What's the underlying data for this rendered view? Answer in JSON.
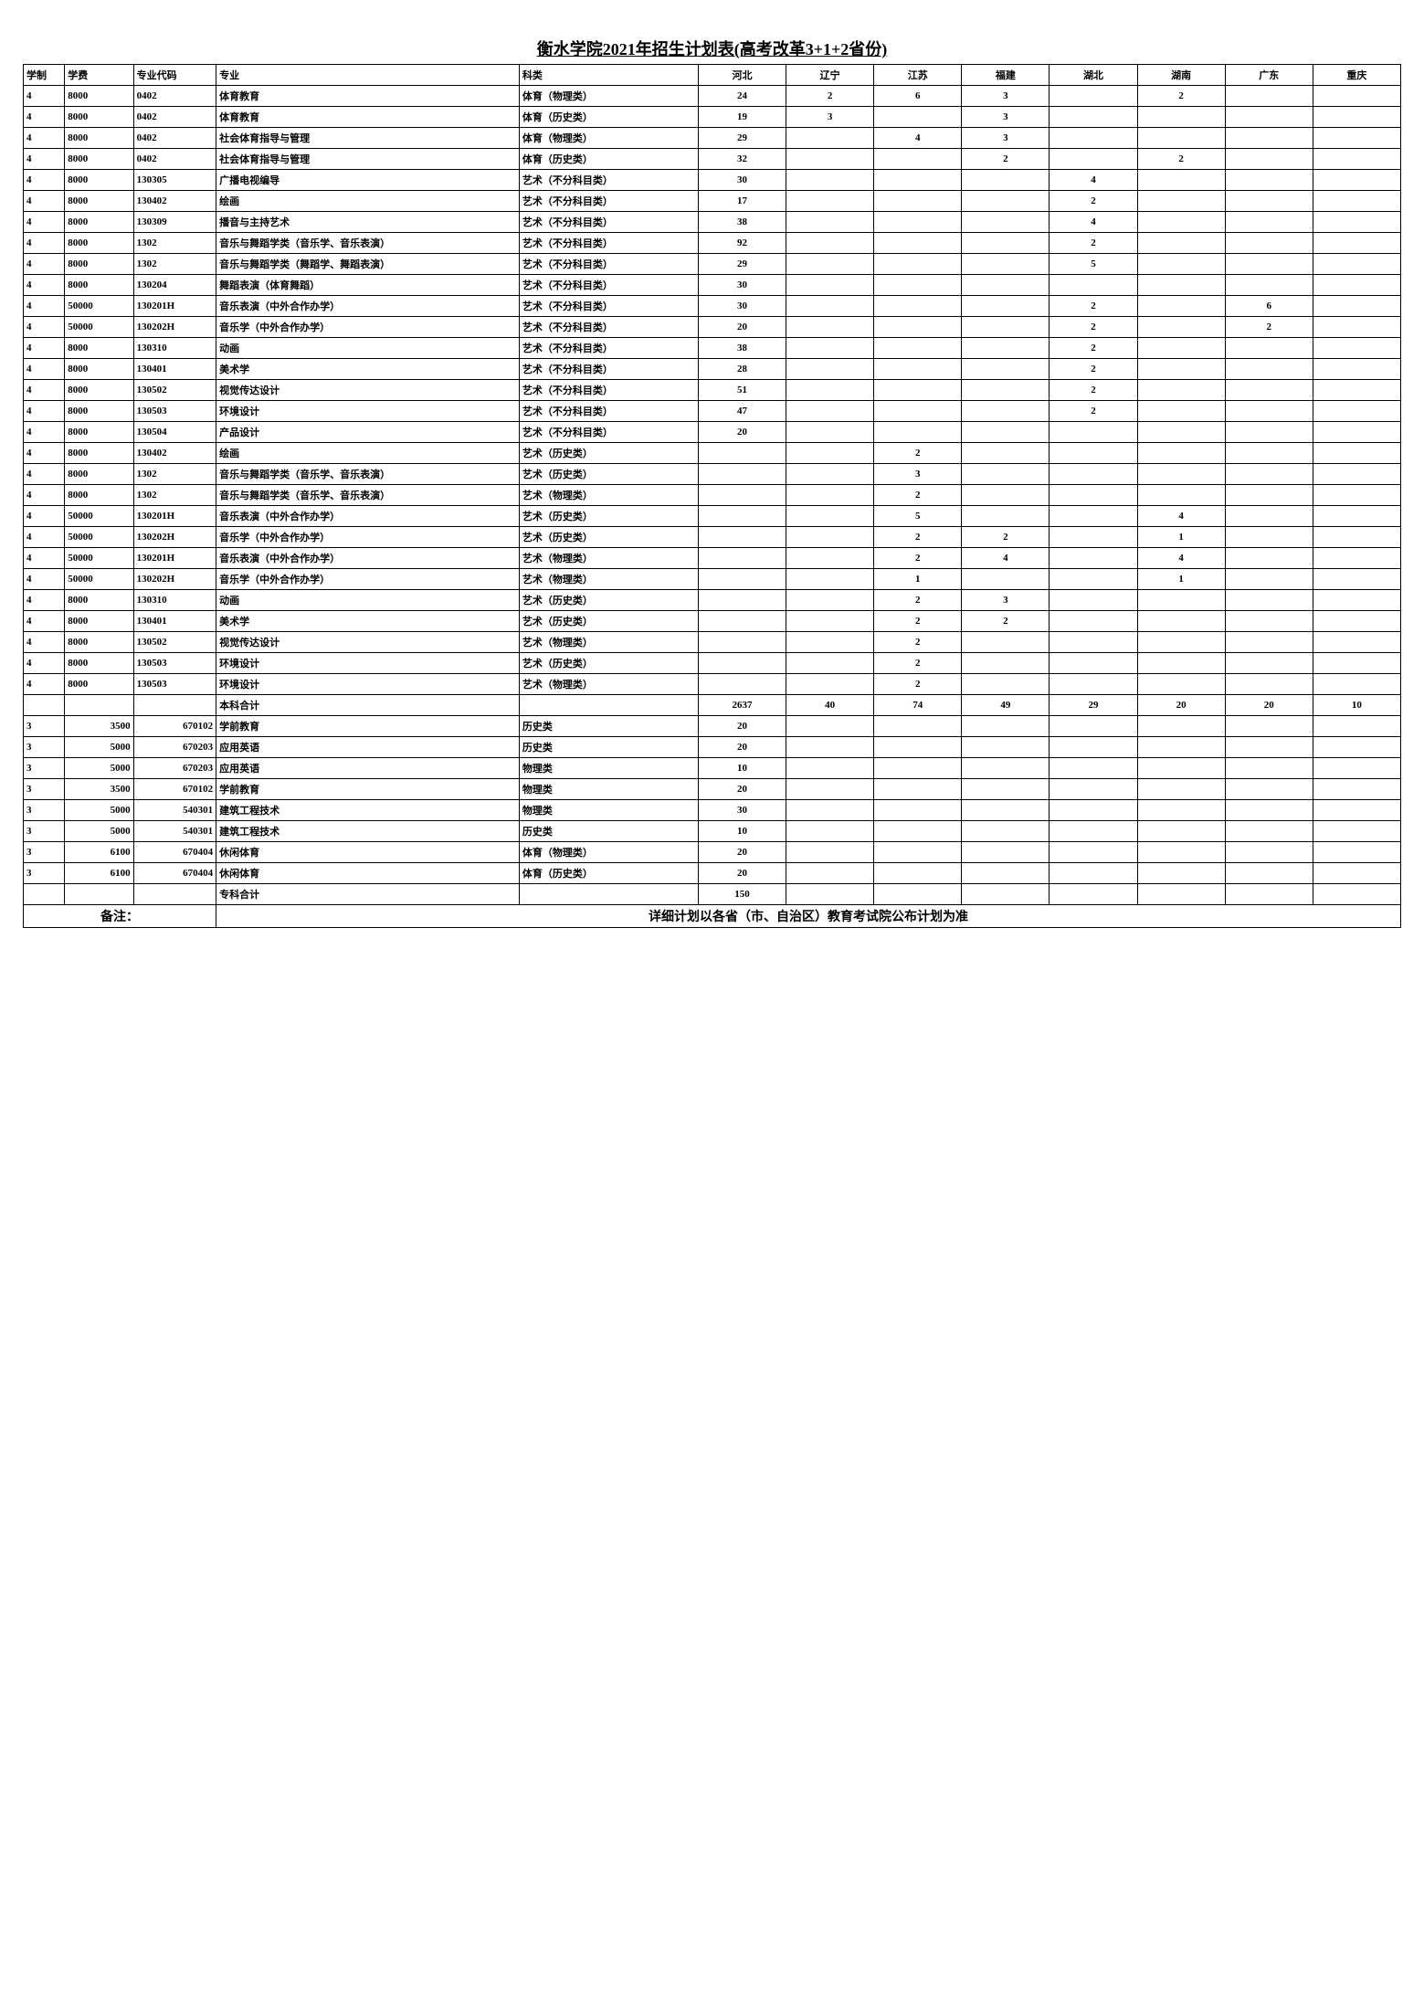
{
  "title": "衡水学院2021年招生计划表(高考改革3+1+2省份)",
  "columns": [
    "学制",
    "学费",
    "专业代码",
    "专业",
    "科类",
    "河北",
    "辽宁",
    "江苏",
    "福建",
    "湖北",
    "湖南",
    "广东",
    "重庆"
  ],
  "rows": [
    [
      "4",
      "8000",
      "0402",
      "体育教育",
      "体育（物理类）",
      "24",
      "2",
      "6",
      "3",
      "",
      "2",
      "",
      ""
    ],
    [
      "4",
      "8000",
      "0402",
      "体育教育",
      "体育（历史类）",
      "19",
      "3",
      "",
      "3",
      "",
      "",
      "",
      ""
    ],
    [
      "4",
      "8000",
      "0402",
      "社会体育指导与管理",
      "体育（物理类）",
      "29",
      "",
      "4",
      "3",
      "",
      "",
      "",
      ""
    ],
    [
      "4",
      "8000",
      "0402",
      "社会体育指导与管理",
      "体育（历史类）",
      "32",
      "",
      "",
      "2",
      "",
      "2",
      "",
      ""
    ],
    [
      "4",
      "8000",
      "130305",
      "广播电视编导",
      "艺术（不分科目类）",
      "30",
      "",
      "",
      "",
      "4",
      "",
      "",
      ""
    ],
    [
      "4",
      "8000",
      "130402",
      "绘画",
      "艺术（不分科目类）",
      "17",
      "",
      "",
      "",
      "2",
      "",
      "",
      ""
    ],
    [
      "4",
      "8000",
      "130309",
      "播音与主持艺术",
      "艺术（不分科目类）",
      "38",
      "",
      "",
      "",
      "4",
      "",
      "",
      ""
    ],
    [
      "4",
      "8000",
      "1302",
      "音乐与舞蹈学类（音乐学、音乐表演）",
      "艺术（不分科目类）",
      "92",
      "",
      "",
      "",
      "2",
      "",
      "",
      ""
    ],
    [
      "4",
      "8000",
      "1302",
      "音乐与舞蹈学类（舞蹈学、舞蹈表演）",
      "艺术（不分科目类）",
      "29",
      "",
      "",
      "",
      "5",
      "",
      "",
      ""
    ],
    [
      "4",
      "8000",
      "130204",
      "舞蹈表演（体育舞蹈）",
      "艺术（不分科目类）",
      "30",
      "",
      "",
      "",
      "",
      "",
      "",
      ""
    ],
    [
      "4",
      "50000",
      "130201H",
      "音乐表演（中外合作办学）",
      "艺术（不分科目类）",
      "30",
      "",
      "",
      "",
      "2",
      "",
      "6",
      ""
    ],
    [
      "4",
      "50000",
      "130202H",
      "音乐学（中外合作办学）",
      "艺术（不分科目类）",
      "20",
      "",
      "",
      "",
      "2",
      "",
      "2",
      ""
    ],
    [
      "4",
      "8000",
      "130310",
      "动画",
      "艺术（不分科目类）",
      "38",
      "",
      "",
      "",
      "2",
      "",
      "",
      ""
    ],
    [
      "4",
      "8000",
      "130401",
      "美术学",
      "艺术（不分科目类）",
      "28",
      "",
      "",
      "",
      "2",
      "",
      "",
      ""
    ],
    [
      "4",
      "8000",
      "130502",
      "视觉传达设计",
      "艺术（不分科目类）",
      "51",
      "",
      "",
      "",
      "2",
      "",
      "",
      ""
    ],
    [
      "4",
      "8000",
      "130503",
      "环境设计",
      "艺术（不分科目类）",
      "47",
      "",
      "",
      "",
      "2",
      "",
      "",
      ""
    ],
    [
      "4",
      "8000",
      "130504",
      "产品设计",
      "艺术（不分科目类）",
      "20",
      "",
      "",
      "",
      "",
      "",
      "",
      ""
    ],
    [
      "4",
      "8000",
      "130402",
      "绘画",
      "艺术（历史类）",
      "",
      "",
      "2",
      "",
      "",
      "",
      "",
      ""
    ],
    [
      "4",
      "8000",
      "1302",
      "音乐与舞蹈学类（音乐学、音乐表演）",
      "艺术（历史类）",
      "",
      "",
      "3",
      "",
      "",
      "",
      "",
      ""
    ],
    [
      "4",
      "8000",
      "1302",
      "音乐与舞蹈学类（音乐学、音乐表演）",
      "艺术（物理类）",
      "",
      "",
      "2",
      "",
      "",
      "",
      "",
      ""
    ],
    [
      "4",
      "50000",
      "130201H",
      "音乐表演（中外合作办学）",
      "艺术（历史类）",
      "",
      "",
      "5",
      "",
      "",
      "4",
      "",
      ""
    ],
    [
      "4",
      "50000",
      "130202H",
      "音乐学（中外合作办学）",
      "艺术（历史类）",
      "",
      "",
      "2",
      "2",
      "",
      "1",
      "",
      ""
    ],
    [
      "4",
      "50000",
      "130201H",
      "音乐表演（中外合作办学）",
      "艺术（物理类）",
      "",
      "",
      "2",
      "4",
      "",
      "4",
      "",
      ""
    ],
    [
      "4",
      "50000",
      "130202H",
      "音乐学（中外合作办学）",
      "艺术（物理类）",
      "",
      "",
      "1",
      "",
      "",
      "1",
      "",
      ""
    ],
    [
      "4",
      "8000",
      "130310",
      "动画",
      "艺术（历史类）",
      "",
      "",
      "2",
      "3",
      "",
      "",
      "",
      ""
    ],
    [
      "4",
      "8000",
      "130401",
      "美术学",
      "艺术（历史类）",
      "",
      "",
      "2",
      "2",
      "",
      "",
      "",
      ""
    ],
    [
      "4",
      "8000",
      "130502",
      "视觉传达设计",
      "艺术（物理类）",
      "",
      "",
      "2",
      "",
      "",
      "",
      "",
      ""
    ],
    [
      "4",
      "8000",
      "130503",
      "环境设计",
      "艺术（历史类）",
      "",
      "",
      "2",
      "",
      "",
      "",
      "",
      ""
    ],
    [
      "4",
      "8000",
      "130503",
      "环境设计",
      "艺术（物理类）",
      "",
      "",
      "2",
      "",
      "",
      "",
      "",
      ""
    ]
  ],
  "bk_total_label": "本科合计",
  "bk_totals": [
    "2637",
    "40",
    "74",
    "49",
    "29",
    "20",
    "20",
    "10"
  ],
  "rows2": [
    [
      "3",
      "3500",
      "670102",
      "学前教育",
      "历史类",
      "20",
      "",
      "",
      "",
      "",
      "",
      "",
      ""
    ],
    [
      "3",
      "5000",
      "670203",
      "应用英语",
      "历史类",
      "20",
      "",
      "",
      "",
      "",
      "",
      "",
      ""
    ],
    [
      "3",
      "5000",
      "670203",
      "应用英语",
      "物理类",
      "10",
      "",
      "",
      "",
      "",
      "",
      "",
      ""
    ],
    [
      "3",
      "3500",
      "670102",
      "学前教育",
      "物理类",
      "20",
      "",
      "",
      "",
      "",
      "",
      "",
      ""
    ],
    [
      "3",
      "5000",
      "540301",
      "建筑工程技术",
      "物理类",
      "30",
      "",
      "",
      "",
      "",
      "",
      "",
      ""
    ],
    [
      "3",
      "5000",
      "540301",
      "建筑工程技术",
      "历史类",
      "10",
      "",
      "",
      "",
      "",
      "",
      "",
      ""
    ],
    [
      "3",
      "6100",
      "670404",
      "休闲体育",
      "体育（物理类）",
      "20",
      "",
      "",
      "",
      "",
      "",
      "",
      ""
    ],
    [
      "3",
      "6100",
      "670404",
      "休闲体育",
      "体育（历史类）",
      "20",
      "",
      "",
      "",
      "",
      "",
      "",
      ""
    ]
  ],
  "zk_total_label": "专科合计",
  "zk_totals": [
    "150",
    "",
    "",
    "",
    "",
    "",
    "",
    ""
  ],
  "note_label": "备注：",
  "note_text": "详细计划以各省（市、自治区）教育考试院公布计划为准"
}
